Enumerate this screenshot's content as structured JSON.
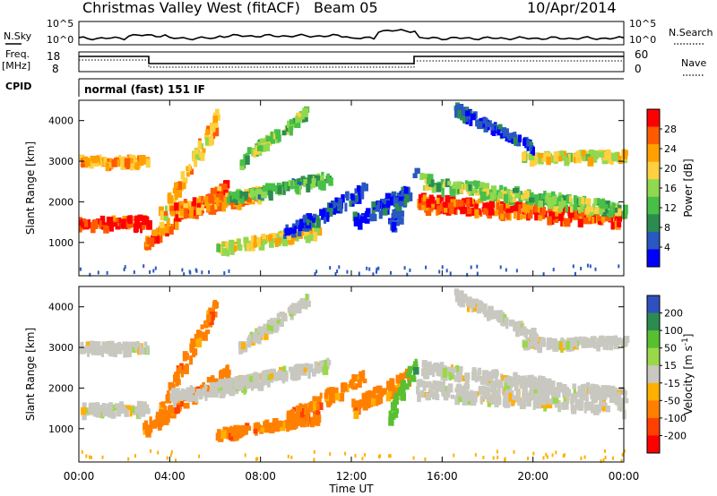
{
  "header": {
    "station": "Christmas Valley West (fitACF)",
    "beam": "Beam 05",
    "date": "10/Apr/2014"
  },
  "top_panels": {
    "nsky": {
      "label": "N.Sky",
      "left_ticks": [
        "10^5",
        "10^0"
      ],
      "right_label": "N.Search",
      "right_ticks": [
        "10^5",
        "10^0"
      ]
    },
    "freq": {
      "label_line1": "Freq.",
      "label_line2": "[MHz]",
      "left_ticks": [
        "18",
        "8"
      ],
      "right_label": "Nave",
      "right_ticks": [
        "60",
        "0"
      ]
    },
    "cpid": {
      "label": "CPID",
      "value": "normal (fast) 151 IF"
    }
  },
  "chart_data": [
    {
      "type": "heatmap",
      "parameter": "Power",
      "ylabel": "Slant Range [km]",
      "xlabel": "",
      "ylim": [
        180,
        4500
      ],
      "yticks": [
        "1000",
        "2000",
        "3000",
        "4000"
      ],
      "colorbar_label": "Power [dB]",
      "colorbar_ticks": [
        "28",
        "24",
        "20",
        "16",
        "12",
        "8",
        "4"
      ],
      "colorbar_colors": [
        "#ff0000",
        "#ff5a00",
        "#ffa000",
        "#ffd040",
        "#90d850",
        "#48c048",
        "#2c8c50",
        "#2858c0",
        "#0000ff"
      ]
    },
    {
      "type": "heatmap",
      "parameter": "Velocity",
      "ylabel": "Slant Range [km]",
      "xlabel": "Time UT",
      "ylim": [
        180,
        4500
      ],
      "yticks": [
        "1000",
        "2000",
        "3000",
        "4000"
      ],
      "xticks": [
        "00:00",
        "04:00",
        "08:00",
        "12:00",
        "16:00",
        "20:00",
        "00:00"
      ],
      "colorbar_label": "Velocity [m s^-1]",
      "colorbar_ticks": [
        "200",
        "100",
        "50",
        "15",
        "-15",
        "-50",
        "-100",
        "-200"
      ],
      "colorbar_colors": [
        "#3050c0",
        "#2c8c50",
        "#58c030",
        "#9ad84a",
        "#c8c8c0",
        "#ffb000",
        "#ff8000",
        "#ff4000",
        "#ff0000"
      ]
    }
  ]
}
